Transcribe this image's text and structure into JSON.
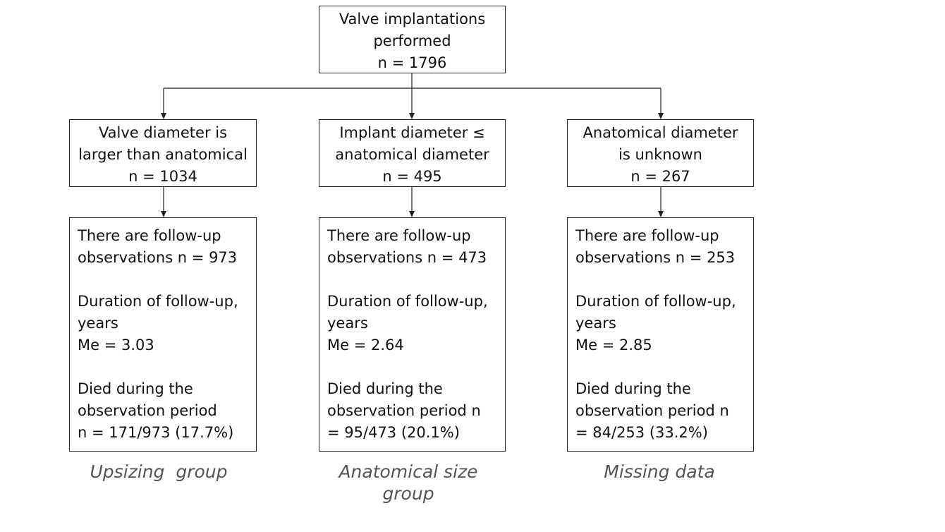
{
  "root": {
    "lines": [
      "Valve implantations",
      "performed",
      "n = 1796"
    ]
  },
  "groups": [
    {
      "header": [
        "Valve diameter is",
        "larger than anatomical",
        "n = 1034"
      ],
      "followup": [
        "There are follow-up",
        "observations n = 973"
      ],
      "duration": [
        "Duration of follow-up,",
        "years",
        "Me = 3.03"
      ],
      "died": [
        "Died during the",
        "observation period",
        "n = 171/973 (17.7%)"
      ],
      "caption": [
        "Upsizing  group"
      ]
    },
    {
      "header": [
        "Implant diameter ≤",
        "anatomical diameter",
        "n = 495"
      ],
      "followup": [
        "There are follow-up",
        "observations n = 473"
      ],
      "duration": [
        "Duration of follow-up,",
        "years",
        "Me = 2.64"
      ],
      "died": [
        "Died during the",
        "observation period n",
        "= 95/473 (20.1%)"
      ],
      "caption": [
        "Anatomical size",
        "group"
      ]
    },
    {
      "header": [
        "Anatomical diameter",
        "is unknown",
        "n = 267"
      ],
      "followup": [
        "There are follow-up",
        "observations n = 253"
      ],
      "duration": [
        "Duration of follow-up,",
        "years",
        "Me = 2.85"
      ],
      "died": [
        "Died during the",
        "observation period n",
        "= 84/253 (33.2%)"
      ],
      "caption": [
        "Missing data"
      ]
    }
  ]
}
